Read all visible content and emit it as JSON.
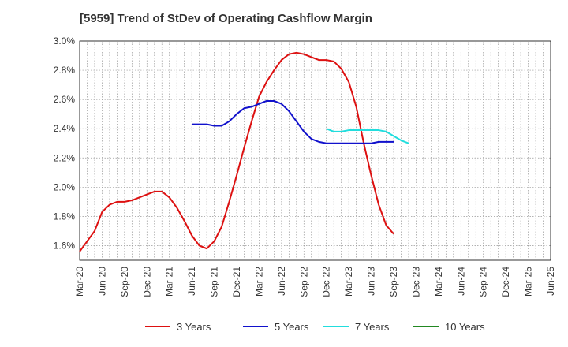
{
  "chart_data": {
    "type": "line",
    "title": "[5959]  Trend of StDev of Operating Cashflow Margin",
    "xlabel": "",
    "ylabel": "",
    "x_tick_labels": [
      "Mar-20",
      "Jun-20",
      "Sep-20",
      "Dec-20",
      "Mar-21",
      "Jun-21",
      "Sep-21",
      "Dec-21",
      "Mar-22",
      "Jun-22",
      "Sep-22",
      "Dec-22",
      "Mar-23",
      "Jun-23",
      "Sep-23",
      "Dec-23",
      "Mar-24",
      "Jun-24",
      "Sep-24",
      "Dec-24",
      "Mar-25",
      "Jun-25"
    ],
    "y_tick_labels": [
      "1.6%",
      "1.8%",
      "2.0%",
      "2.2%",
      "2.4%",
      "2.6%",
      "2.8%",
      "3.0%"
    ],
    "ylim": [
      1.5,
      3.0
    ],
    "y_ticks": [
      1.6,
      1.8,
      2.0,
      2.2,
      2.4,
      2.6,
      2.8,
      3.0
    ],
    "grid": true,
    "legend_position": "bottom",
    "series": [
      {
        "name": "3 Years",
        "color": "#dd1111",
        "start_index": 0,
        "values": [
          1.56,
          1.63,
          1.7,
          1.83,
          1.88,
          1.9,
          1.9,
          1.91,
          1.93,
          1.95,
          1.97,
          1.97,
          1.93,
          1.86,
          1.77,
          1.67,
          1.6,
          1.58,
          1.63,
          1.73,
          1.9,
          2.08,
          2.27,
          2.45,
          2.62,
          2.72,
          2.8,
          2.87,
          2.91,
          2.92,
          2.91,
          2.89,
          2.87,
          2.87,
          2.86,
          2.81,
          2.72,
          2.55,
          2.3,
          2.08,
          1.88,
          1.74,
          1.68
        ]
      },
      {
        "name": "5 Years",
        "color": "#1111cc",
        "start_index": 15,
        "values": [
          2.43,
          2.43,
          2.43,
          2.42,
          2.42,
          2.45,
          2.5,
          2.54,
          2.55,
          2.57,
          2.59,
          2.59,
          2.57,
          2.52,
          2.45,
          2.38,
          2.33,
          2.31,
          2.3,
          2.3,
          2.3,
          2.3,
          2.3,
          2.3,
          2.3,
          2.31,
          2.31,
          2.31
        ]
      },
      {
        "name": "7 Years",
        "color": "#22dddd",
        "start_index": 33,
        "values": [
          2.4,
          2.38,
          2.38,
          2.39,
          2.39,
          2.39,
          2.39,
          2.39,
          2.38,
          2.35,
          2.32,
          2.3
        ]
      },
      {
        "name": "10 Years",
        "color": "#228822",
        "start_index": 0,
        "values": []
      }
    ]
  }
}
